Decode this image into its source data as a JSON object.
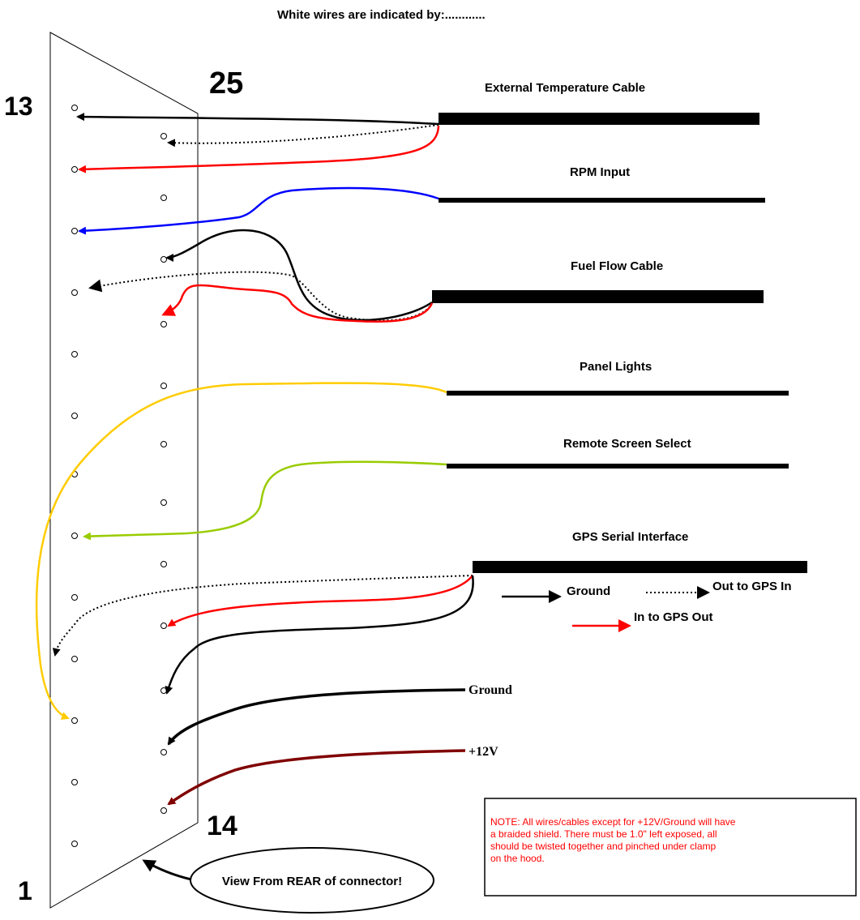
{
  "header": {
    "title": "White wires are indicated by:............"
  },
  "connector": {
    "pin_labels": {
      "top_left": "13",
      "top_right": "25",
      "bottom_left": "1",
      "bottom_right": "14"
    },
    "view_note": "View From REAR of connector!"
  },
  "cables": {
    "external_temperature": "External Temperature Cable",
    "rpm_input": "RPM Input",
    "fuel_flow": "Fuel Flow Cable",
    "panel_lights": "Panel Lights",
    "remote_screen_select": "Remote Screen Select",
    "gps_serial": "GPS Serial Interface",
    "ground": "Ground",
    "plus12v": "+12V"
  },
  "legend": {
    "ground": "Ground",
    "out_to_gps_in": "Out to GPS In",
    "in_to_gps_out": "In to GPS Out"
  },
  "note": {
    "lines": [
      "NOTE:  All wires/cables except for +12V/Ground will have",
      "a braided shield.  There must be 1.0\" left exposed, all",
      "should be twisted together and pinched under clamp",
      "on the hood."
    ]
  },
  "colors": {
    "black": "#000000",
    "red": "#ff0000",
    "blue": "#0000ff",
    "yellow": "#ffcc00",
    "green": "#99cc00",
    "dark_red": "#800000",
    "note_text": "#ff0000"
  }
}
